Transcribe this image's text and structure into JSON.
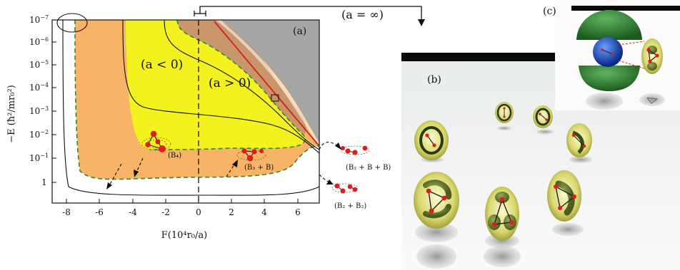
{
  "panel_a": {
    "label": "(a)",
    "region_neg": "(a < 0)",
    "region_pos": "(a > 0)",
    "infinity_label": "(a = ∞)",
    "ylabel": "−E (ħ²/mr₀²)",
    "xlabel": "F(10⁴r₀/a)",
    "yticks": [
      {
        "v": -7,
        "base": "10",
        "exp": "−7"
      },
      {
        "v": -6,
        "base": "10",
        "exp": "−6"
      },
      {
        "v": -5,
        "base": "10",
        "exp": "−5"
      },
      {
        "v": -4,
        "base": "10",
        "exp": "−4"
      },
      {
        "v": -3,
        "base": "10",
        "exp": "−3"
      },
      {
        "v": -2,
        "base": "10",
        "exp": "−2"
      },
      {
        "v": -1,
        "base": "10",
        "exp": "−1"
      },
      {
        "v": 0,
        "base": "1",
        "exp": ""
      }
    ],
    "xticks": [
      {
        "v": -8,
        "label": "-8"
      },
      {
        "v": -6,
        "label": "-6"
      },
      {
        "v": -4,
        "label": "-4"
      },
      {
        "v": -2,
        "label": "-2"
      },
      {
        "v": 0,
        "label": "0"
      },
      {
        "v": 2,
        "label": "2"
      },
      {
        "v": 4,
        "label": "4"
      },
      {
        "v": 6,
        "label": "6"
      }
    ],
    "cluster_labels": {
      "b4": "(B₄)",
      "b3b": "(B₃ + B)",
      "b2bb": "(B₂ + B + B)",
      "b2b2": "(B₂ + B₂)"
    }
  },
  "panel_b": {
    "label": "(b)"
  },
  "panel_c": {
    "label": "(c)"
  },
  "colors": {
    "orange": "#f8b466",
    "yellow": "#f3f21f",
    "brown": "#c9956b",
    "gray": "#a6a6a6",
    "green_dash": "#2e8b2e",
    "red_line": "#d42020",
    "atom_red": "#e01c1c",
    "torus_yellow": "#e4e48a"
  }
}
